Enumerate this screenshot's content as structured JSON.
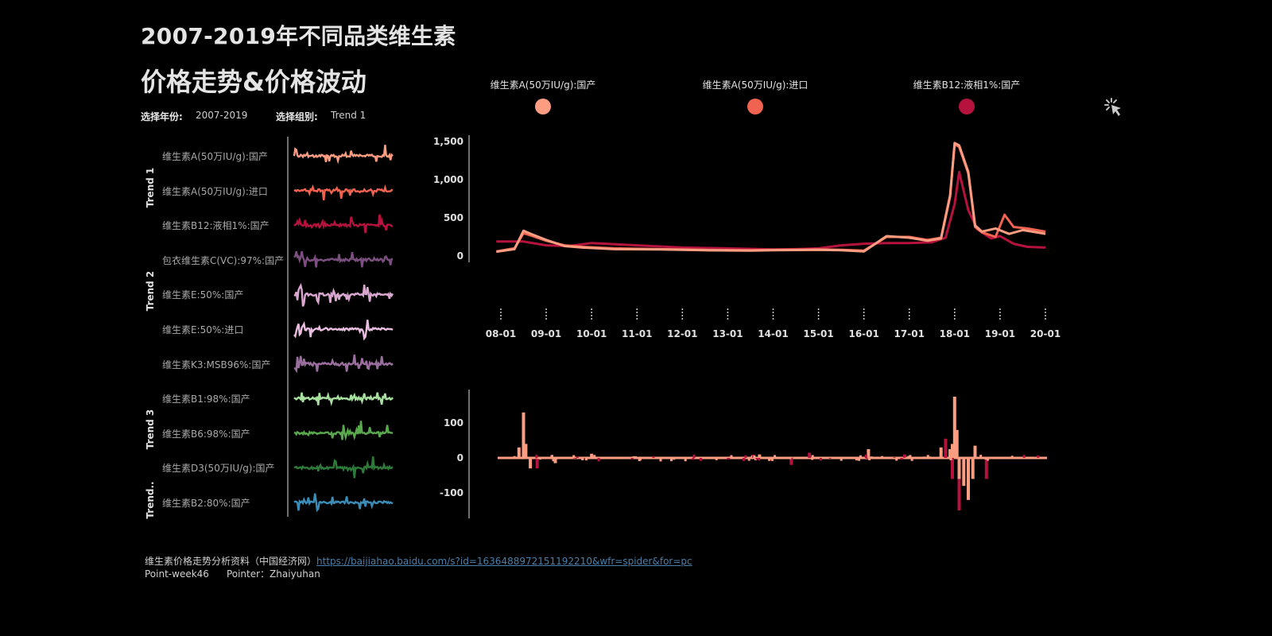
{
  "header": {
    "title_line1": "2007-2019年不同品类维生素",
    "title_line2": "价格走势&价格波动"
  },
  "filters": {
    "year_label": "选择年份:",
    "year_value": "2007-2019",
    "group_label": "选择组别:",
    "group_value": "Trend 1"
  },
  "legend": [
    {
      "label": "维生素A(50万IU/g):国产",
      "color": "#fc9d82"
    },
    {
      "label": "维生素A(50万IU/g):进口",
      "color": "#f06350"
    },
    {
      "label": "维生素B12:液相1%:国产",
      "color": "#b5123d"
    }
  ],
  "icons": {
    "cursor": "pointer-click-icon"
  },
  "sparklines": {
    "groups": [
      {
        "label": "Trend 1"
      },
      {
        "label": "Trend 2"
      },
      {
        "label": "Trend 3"
      },
      {
        "label": "Trend.."
      }
    ],
    "rows": [
      {
        "label": "维生素A(50万IU/g):国产",
        "color": "#fc9d82"
      },
      {
        "label": "维生素A(50万IU/g):进口",
        "color": "#f06350"
      },
      {
        "label": "维生素B12:液相1%:国产",
        "color": "#b5123d"
      },
      {
        "label": "包衣维生素C(VC):97%:国产",
        "color": "#7b4f80"
      },
      {
        "label": "维生素E:50%:国产",
        "color": "#d9a7cf"
      },
      {
        "label": "维生素E:50%:进口",
        "color": "#e8bde0"
      },
      {
        "label": "维生素K3:MSB96%:国产",
        "color": "#9b6ea0"
      },
      {
        "label": "维生素B1:98%:国产",
        "color": "#a8e0a0"
      },
      {
        "label": "维生素B6:98%:国产",
        "color": "#5aa84e"
      },
      {
        "label": "维生素D3(50万IU/g):国产",
        "color": "#2e7a3a"
      },
      {
        "label": "维生素B2:80%:国产",
        "color": "#3b8db8"
      }
    ]
  },
  "chart_data": [
    {
      "type": "line",
      "title": "",
      "x_ticks": [
        "08-01",
        "09-01",
        "10-01",
        "11-01",
        "12-01",
        "13-01",
        "14-01",
        "15-01",
        "16-01",
        "17-01",
        "18-01",
        "19-01",
        "20-01"
      ],
      "y_ticks": [
        "1,500",
        "1,000",
        "500",
        "0"
      ],
      "ylim": [
        0,
        1500
      ],
      "grid": false,
      "series": [
        {
          "name": "维生素A(50万IU/g):国产",
          "color": "#fc9d82",
          "x": [
            2007.9,
            2008.3,
            2008.5,
            2008.7,
            2009.0,
            2009.4,
            2009.8,
            2010.5,
            2011.5,
            2012.5,
            2013.5,
            2014.0,
            2015.0,
            2015.5,
            2016.0,
            2016.5,
            2017.0,
            2017.4,
            2017.7,
            2017.9,
            2018.0,
            2018.1,
            2018.3,
            2018.45,
            2018.6,
            2018.9,
            2019.2,
            2019.5,
            2019.9,
            2020.0
          ],
          "values": [
            55,
            90,
            330,
            280,
            210,
            130,
            110,
            90,
            85,
            75,
            70,
            75,
            80,
            75,
            60,
            260,
            240,
            200,
            230,
            780,
            1480,
            1450,
            1100,
            400,
            320,
            360,
            290,
            340,
            300,
            290
          ]
        },
        {
          "name": "维生素A(50万IU/g):进口",
          "color": "#f06350",
          "x": [
            2007.9,
            2008.3,
            2008.5,
            2008.7,
            2009.0,
            2009.4,
            2009.8,
            2010.5,
            2011.5,
            2012.5,
            2013.5,
            2014.0,
            2015.0,
            2015.5,
            2016.0,
            2016.5,
            2017.0,
            2017.4,
            2017.7,
            2017.9,
            2018.0,
            2018.1,
            2018.3,
            2018.45,
            2018.6,
            2018.9,
            2019.1,
            2019.3,
            2019.6,
            2020.0
          ],
          "values": [
            60,
            100,
            300,
            260,
            200,
            140,
            120,
            100,
            90,
            80,
            75,
            80,
            85,
            80,
            70,
            250,
            250,
            210,
            240,
            800,
            1460,
            1430,
            1080,
            380,
            310,
            250,
            540,
            380,
            360,
            320
          ]
        },
        {
          "name": "维生素B12:液相1%:国产",
          "color": "#b5123d",
          "x": [
            2007.9,
            2008.5,
            2009.0,
            2009.5,
            2010.0,
            2011.0,
            2012.0,
            2013.0,
            2014.0,
            2014.5,
            2015.0,
            2015.5,
            2016.0,
            2016.5,
            2017.0,
            2017.5,
            2017.8,
            2018.0,
            2018.1,
            2018.3,
            2018.5,
            2018.8,
            2019.0,
            2019.3,
            2019.6,
            2020.0
          ],
          "values": [
            190,
            190,
            140,
            130,
            170,
            140,
            110,
            100,
            85,
            90,
            100,
            140,
            160,
            170,
            170,
            180,
            240,
            680,
            1100,
            600,
            350,
            230,
            260,
            160,
            120,
            110
          ]
        }
      ]
    },
    {
      "type": "bar",
      "title": "",
      "y_ticks": [
        "100",
        "0",
        "-100"
      ],
      "ylim": [
        -160,
        180
      ],
      "grid": false,
      "series": [
        {
          "name": "维生素A(50万IU/g):国产",
          "color": "#fc9d82",
          "x": [
            2008.4,
            2008.5,
            2008.55,
            2008.65,
            2009.2,
            2010.0,
            2013.7,
            2016.1,
            2017.7,
            2017.9,
            2017.95,
            2018.0,
            2018.05,
            2018.1,
            2018.2,
            2018.3,
            2018.4,
            2018.45
          ],
          "values": [
            30,
            130,
            40,
            -30,
            -15,
            12,
            10,
            25,
            30,
            25,
            40,
            175,
            80,
            -60,
            -80,
            -120,
            -60,
            35
          ]
        },
        {
          "name": "维生素B12:液相1%:国产",
          "color": "#b5123d",
          "x": [
            2008.8,
            2014.4,
            2014.8,
            2016.9,
            2017.8,
            2017.95,
            2018.1,
            2018.3,
            2018.7
          ],
          "values": [
            -30,
            -20,
            15,
            10,
            55,
            -60,
            -150,
            -120,
            -60
          ]
        }
      ]
    }
  ],
  "footer": {
    "source_text": "维生素价格走势分析资料（中国经济网）",
    "link_text": "https://baijiahao.baidu.com/s?id=1636488972151192210&wfr=spider&for=pc",
    "credit_week": "Point-week46",
    "credit_pointer": "Pointer：Zhaiyuhan"
  }
}
